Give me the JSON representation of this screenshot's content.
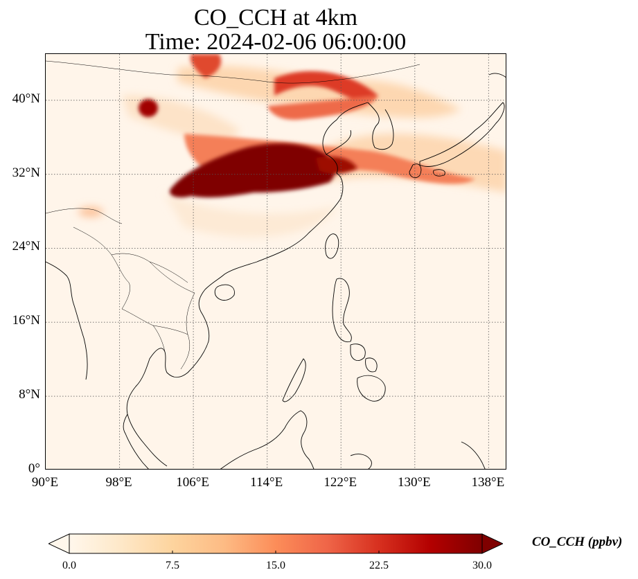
{
  "title": {
    "line1": "CO_CCH at 4km",
    "line2": "Time: 2024-02-06 06:00:00"
  },
  "map": {
    "lon_range": [
      90,
      140
    ],
    "lat_range": [
      0,
      45
    ],
    "gridlines": true,
    "lat_ticks": [
      {
        "value": 40,
        "label": "40°N"
      },
      {
        "value": 32,
        "label": "32°N"
      },
      {
        "value": 24,
        "label": "24°N"
      },
      {
        "value": 16,
        "label": "16°N"
      },
      {
        "value": 8,
        "label": "8°N"
      },
      {
        "value": 0,
        "label": "0°"
      }
    ],
    "lon_ticks": [
      {
        "value": 90,
        "label": "90°E"
      },
      {
        "value": 98,
        "label": "98°E"
      },
      {
        "value": 106,
        "label": "106°E"
      },
      {
        "value": 114,
        "label": "114°E"
      },
      {
        "value": 122,
        "label": "122°E"
      },
      {
        "value": 130,
        "label": "130°E"
      },
      {
        "value": 138,
        "label": "138°E"
      }
    ]
  },
  "colorbar": {
    "label": "CO_CCH (ppbv)",
    "min": 0,
    "max": 30,
    "extend": "both",
    "colormap": "OrRd",
    "colors": [
      "#fff7ec",
      "#fee8c8",
      "#fdd49e",
      "#fdbb84",
      "#fc8d59",
      "#ef6548",
      "#d7301f",
      "#b30000",
      "#7f0000"
    ],
    "ticks": [
      {
        "value": 0,
        "label": "0.0"
      },
      {
        "value": 7.5,
        "label": "7.5"
      },
      {
        "value": 15,
        "label": "15.0"
      },
      {
        "value": 22.5,
        "label": "22.5"
      },
      {
        "value": 30,
        "label": "30.0"
      }
    ]
  }
}
